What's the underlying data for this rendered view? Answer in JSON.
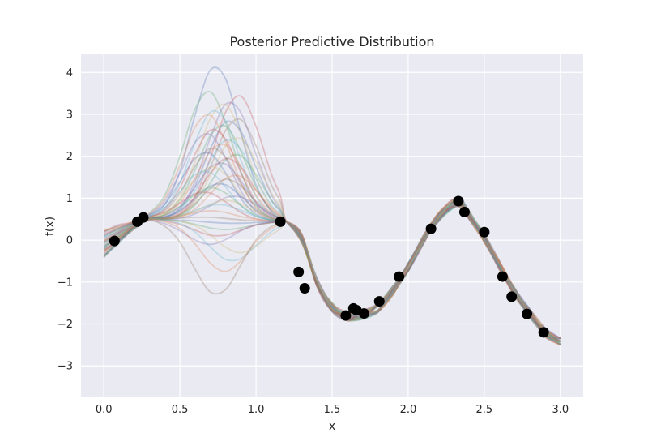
{
  "chart_data": {
    "type": "line",
    "title": "Posterior Predictive Distribution",
    "xlabel": "x",
    "ylabel": "f(x)",
    "xlim": [
      -0.15,
      3.15
    ],
    "ylim": [
      -3.75,
      4.45
    ],
    "grid": true,
    "x_ticks": [
      0.0,
      0.5,
      1.0,
      1.5,
      2.0,
      2.5,
      3.0
    ],
    "x_tick_labels": [
      "0.0",
      "0.5",
      "1.0",
      "1.5",
      "2.0",
      "2.5",
      "3.0"
    ],
    "y_ticks": [
      -3,
      -2,
      -1,
      0,
      1,
      2,
      3,
      4
    ],
    "y_tick_labels": [
      "−3",
      "−2",
      "−1",
      "0",
      "1",
      "2",
      "3",
      "4"
    ],
    "observations": {
      "x": [
        0.07,
        0.22,
        0.26,
        1.16,
        1.28,
        1.32,
        1.59,
        1.64,
        1.66,
        1.71,
        1.81,
        1.94,
        2.15,
        2.33,
        2.37,
        2.5,
        2.62,
        2.68,
        2.78,
        2.89
      ],
      "y": [
        -0.02,
        0.44,
        0.54,
        0.44,
        -0.76,
        -1.15,
        -1.8,
        -1.63,
        -1.67,
        -1.75,
        -1.46,
        -0.87,
        0.27,
        0.93,
        0.67,
        0.19,
        -0.87,
        -1.35,
        -1.76,
        -2.2
      ],
      "color": "#000000"
    },
    "posterior_samples": {
      "count": 40,
      "x": [
        0.0,
        0.1,
        0.2,
        0.3,
        0.4,
        0.5,
        0.6,
        0.7,
        0.8,
        0.9,
        1.0,
        1.1,
        1.16,
        1.2,
        1.3,
        1.4,
        1.5,
        1.6,
        1.7,
        1.8,
        1.9,
        2.0,
        2.1,
        2.2,
        2.3,
        2.35,
        2.4,
        2.5,
        2.6,
        2.7,
        2.8,
        2.9,
        3.0
      ],
      "shared_tail_y": [
        0.44,
        0.05,
        -1.0,
        -1.6,
        -1.82,
        -1.78,
        -1.62,
        -1.2,
        -0.65,
        0.0,
        0.55,
        0.88,
        0.88,
        0.6,
        0.05,
        -0.6,
        -1.25,
        -1.75,
        -2.2,
        -2.4
      ],
      "peak_heights_at_0.75": [
        4.15,
        3.55,
        3.45,
        3.3,
        3.25,
        3.1,
        3.0,
        2.9,
        2.85,
        2.75,
        2.65,
        2.55,
        2.45,
        2.4,
        2.3,
        2.2,
        2.1,
        2.05,
        1.95,
        1.85,
        1.75,
        1.65,
        1.55,
        1.45,
        1.35,
        1.25,
        1.15,
        1.05,
        0.95,
        0.85,
        0.7,
        0.55,
        0.4,
        0.25,
        0.1,
        -0.1,
        -0.3,
        -0.5,
        -0.75,
        -1.3
      ],
      "colors": [
        "#4c72b0",
        "#55a868",
        "#c44e52",
        "#8172b2",
        "#ccb974",
        "#64b5cd",
        "#dd8452",
        "#937860"
      ]
    }
  }
}
